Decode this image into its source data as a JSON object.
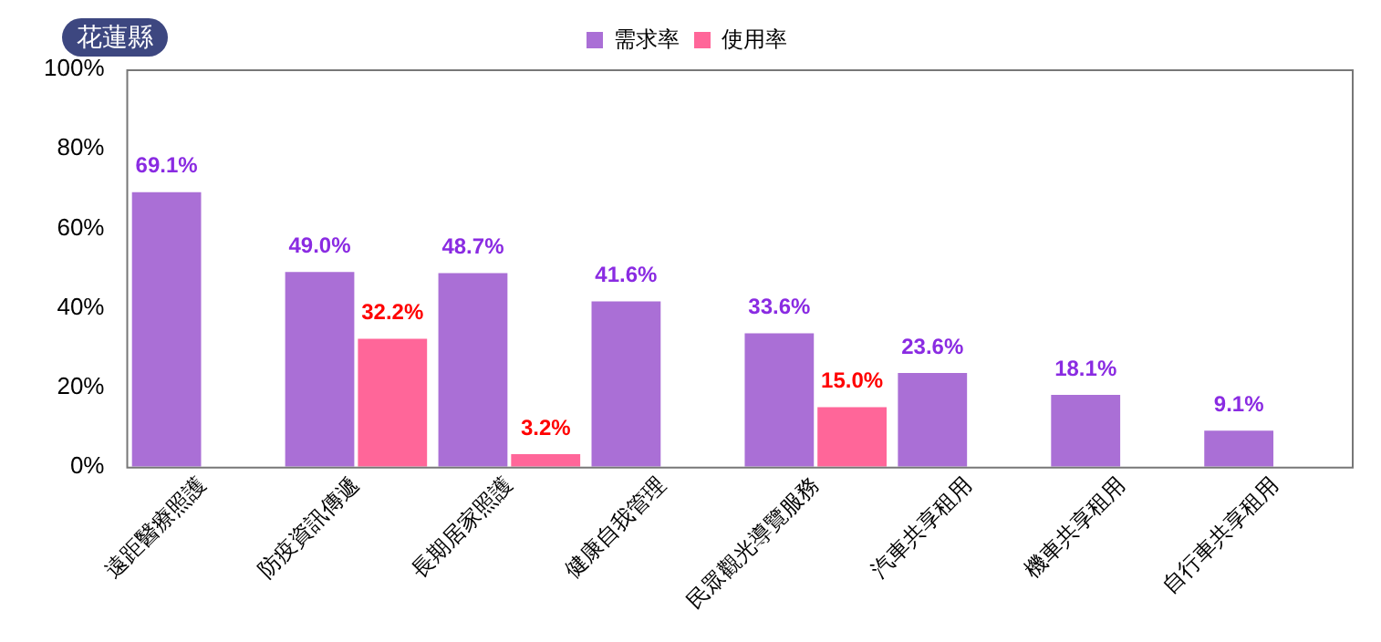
{
  "chart_data": {
    "type": "bar",
    "title": "花蓮縣",
    "categories": [
      "遠距醫療照護",
      "防疫資訊傳遞",
      "長期居家照護",
      "健康自我管理",
      "民眾觀光導覽服務",
      "汽車共享租用",
      "機車共享租用",
      "自行車共享租用"
    ],
    "series": [
      {
        "name": "需求率",
        "color": "#aa6fd6",
        "values": [
          69.1,
          49.0,
          48.7,
          41.6,
          33.6,
          23.6,
          18.1,
          9.1
        ],
        "value_labels": [
          "69.1%",
          "49.0%",
          "48.7%",
          "41.6%",
          "33.6%",
          "23.6%",
          "18.1%",
          "9.1%"
        ]
      },
      {
        "name": "使用率",
        "color": "#ff6699",
        "values": [
          null,
          32.2,
          3.2,
          null,
          15.0,
          null,
          null,
          null
        ],
        "value_labels": [
          null,
          "32.2%",
          "3.2%",
          null,
          "15.0%",
          null,
          null,
          null
        ]
      }
    ],
    "ylim": [
      0,
      100
    ],
    "yticks": [
      {
        "value": 0,
        "label": "0%"
      },
      {
        "value": 20,
        "label": "20%"
      },
      {
        "value": 40,
        "label": "40%"
      },
      {
        "value": 60,
        "label": "60%"
      },
      {
        "value": 80,
        "label": "80%"
      },
      {
        "value": 100,
        "label": "100%"
      }
    ],
    "grid": false,
    "legend": "top"
  }
}
